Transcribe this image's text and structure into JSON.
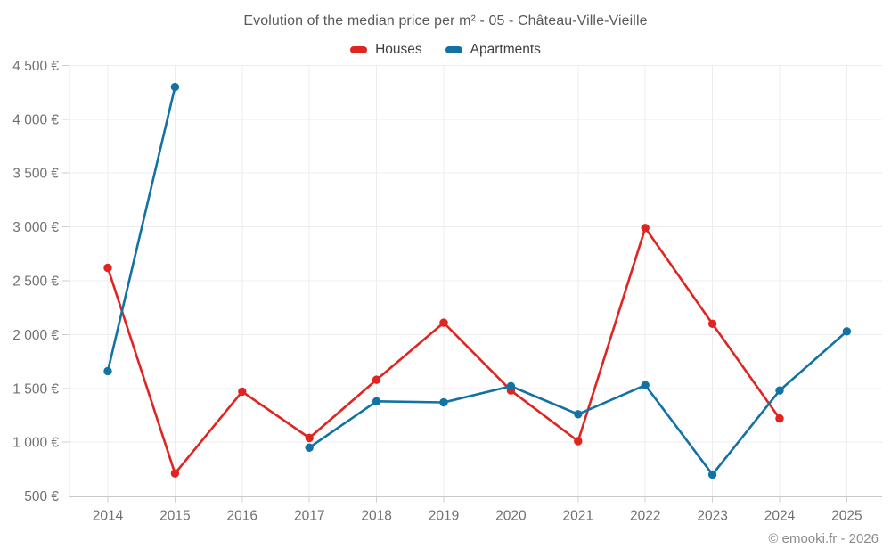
{
  "chart_data": {
    "type": "line",
    "title": "Evolution of the median price per m² - 05 - Château-Ville-Vieille",
    "categories": [
      "2014",
      "2015",
      "2016",
      "2017",
      "2018",
      "2019",
      "2020",
      "2021",
      "2022",
      "2023",
      "2024",
      "2025"
    ],
    "series": [
      {
        "name": "Houses",
        "color": "#e02421",
        "values": [
          2620,
          710,
          1470,
          1040,
          1580,
          2110,
          1480,
          1010,
          2990,
          2100,
          1220,
          null
        ]
      },
      {
        "name": "Apartments",
        "color": "#1272a3",
        "values": [
          1660,
          4300,
          null,
          950,
          1380,
          1370,
          1520,
          1260,
          1530,
          700,
          1480,
          2030
        ]
      }
    ],
    "xlabel": "",
    "ylabel": "",
    "ylim": [
      500,
      4500
    ],
    "ytick_step": 500,
    "ytick_labels": [
      "500 €",
      "1 000 €",
      "1 500 €",
      "2 000 €",
      "2 500 €",
      "3 000 €",
      "3 500 €",
      "4 000 €",
      "4 500 €"
    ],
    "grid": true,
    "legend_position": "top-center",
    "currency_suffix": "€"
  },
  "footer": {
    "copyright": "© emooki.fr - 2026"
  },
  "colors": {
    "houses": "#e02421",
    "apartments": "#1272a3",
    "gridline": "#ececec",
    "axis_line": "#c9c9c9",
    "tick": "#cfcfcf",
    "axis_text": "#707070",
    "title_text": "#595959",
    "legend_text": "#3f3f3f",
    "copyright_text": "#8c8c8c",
    "background": "#ffffff"
  }
}
